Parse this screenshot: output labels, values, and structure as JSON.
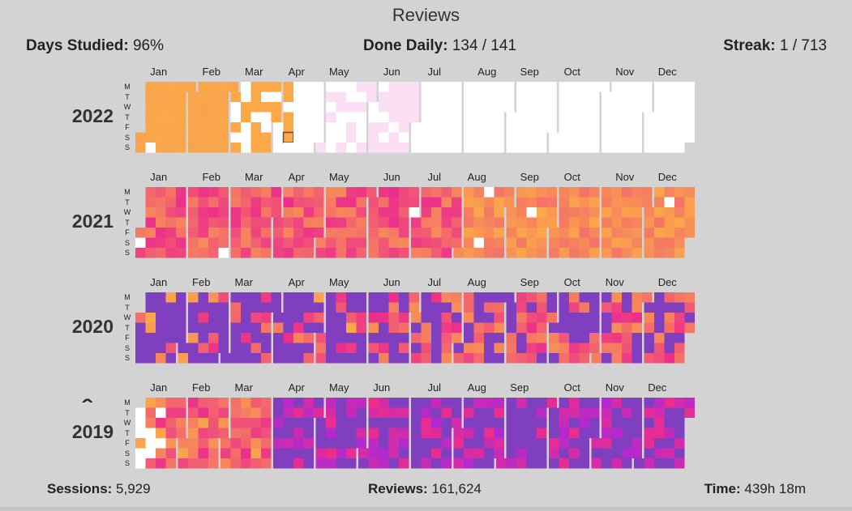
{
  "header": {
    "title": "Reviews"
  },
  "stats": {
    "days_studied_label": "Days Studied:",
    "days_studied_value": "96%",
    "done_daily_label": "Done Daily:",
    "done_daily_value": "134 / 141",
    "streak_label": "Streak:",
    "streak_value": "1 / 713"
  },
  "footer": {
    "sessions_label": "Sessions:",
    "sessions_value": "5,929",
    "reviews_label": "Reviews:",
    "reviews_value": "161,624",
    "time_label": "Time:",
    "time_value": "439h 18m"
  },
  "collapse_icon": "caret-up-icon",
  "colors": {
    "background": "#d3d3d3",
    "empty": "#ffffff",
    "light_pink": "#fbe0f5",
    "orange": "#fba849",
    "pink": "#ec2d8c",
    "purple": "#7f3fbf",
    "today_outline": "#555555"
  },
  "chart_data": {
    "type": "heatmap",
    "title": "Reviews",
    "years": [
      "2022",
      "2021",
      "2020",
      "2019"
    ],
    "months": [
      "Jan",
      "Feb",
      "Mar",
      "Apr",
      "May",
      "Jun",
      "Jul",
      "Aug",
      "Sep",
      "Oct",
      "Nov",
      "Dec"
    ],
    "weekdays": [
      "M",
      "T",
      "W",
      "T",
      "F",
      "S",
      "S"
    ],
    "today": "2022-04-09",
    "days_studied_pct": 96,
    "current_streak": 1,
    "longest_streak": 713
  }
}
